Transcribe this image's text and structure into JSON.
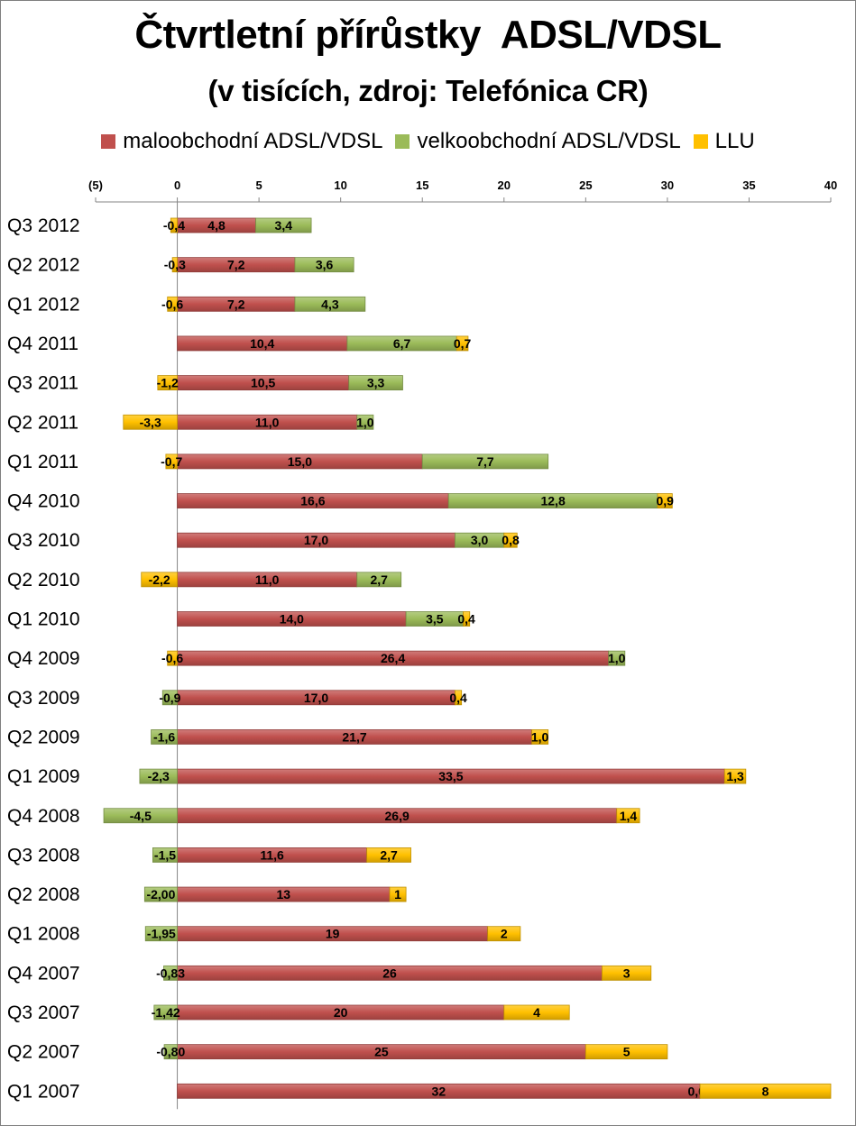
{
  "chart_data": {
    "type": "bar",
    "orientation": "horizontal",
    "stacked": true,
    "title": "Čtvrtletní přírůstky  ADSL/VDSL",
    "subtitle": "(v tisících, zdroj: Telefónica CR)",
    "xlim": [
      -5,
      40
    ],
    "xticks": [
      -5,
      0,
      5,
      10,
      15,
      20,
      25,
      30,
      35,
      40
    ],
    "xtick_labels": [
      "(5)",
      "0",
      "5",
      "10",
      "15",
      "20",
      "25",
      "30",
      "35",
      "40"
    ],
    "axis_position": "top",
    "grid": false,
    "legend_position": "top",
    "categories": [
      "Q3 2012",
      "Q2 2012",
      "Q1 2012",
      "Q4 2011",
      "Q3 2011",
      "Q2 2011",
      "Q1 2011",
      "Q4 2010",
      "Q3 2010",
      "Q2 2010",
      "Q1 2010",
      "Q4 2009",
      "Q3 2009",
      "Q2 2009",
      "Q1 2009",
      "Q4 2008",
      "Q3 2008",
      "Q2 2008",
      "Q1 2008",
      "Q4 2007",
      "Q3 2007",
      "Q2 2007",
      "Q1 2007"
    ],
    "series": [
      {
        "name": "maloobchodní ADSL/VDSL",
        "color": "#c0504d",
        "values": [
          4.8,
          7.2,
          7.2,
          10.4,
          10.5,
          11.0,
          15.0,
          16.6,
          17.0,
          11.0,
          14.0,
          26.4,
          17.0,
          21.7,
          33.5,
          26.9,
          11.6,
          13,
          19,
          26,
          20,
          25,
          32
        ],
        "labels": [
          "4,8",
          "7,2",
          "7,2",
          "10,4",
          "10,5",
          "11,0",
          "15,0",
          "16,6",
          "17,0",
          "11,0",
          "14,0",
          "26,4",
          "17,0",
          "21,7",
          "33,5",
          "26,9",
          "11,6",
          "13",
          "19",
          "26",
          "20",
          "25",
          "32"
        ]
      },
      {
        "name": "velkoobchodní ADSL/VDSL",
        "color": "#9bbb59",
        "values": [
          3.4,
          3.6,
          4.3,
          6.7,
          3.3,
          1.0,
          7.7,
          12.8,
          3.0,
          2.7,
          3.5,
          1.0,
          -0.9,
          -1.6,
          -2.3,
          -4.5,
          -1.5,
          -2.0,
          -1.95,
          -0.83,
          -1.42,
          -0.8,
          0.0
        ],
        "labels": [
          "3,4",
          "3,6",
          "4,3",
          "6,7",
          "3,3",
          "1,0",
          "7,7",
          "12,8",
          "3,0",
          "2,7",
          "3,5",
          "1,0",
          "-0,9",
          "-1,6",
          "-2,3",
          "-4,5",
          "-1,5",
          "-2,00",
          "-1,95",
          "-0,83",
          "-1,42",
          "-0,80",
          "0,00"
        ]
      },
      {
        "name": "LLU",
        "color": "#ffc000",
        "values": [
          -0.4,
          -0.3,
          -0.6,
          0.7,
          -1.2,
          -3.3,
          -0.7,
          0.9,
          0.8,
          -2.2,
          0.4,
          -0.6,
          0.4,
          1.0,
          1.3,
          1.4,
          2.7,
          1,
          2,
          3,
          4,
          5,
          8
        ],
        "labels": [
          "-0,4",
          "-0,3",
          "-0,6",
          "0,7",
          "-1,2",
          "-3,3",
          "-0,7",
          "0,9",
          "0,8",
          "-2,2",
          "0,4",
          "-0,6",
          "0,4",
          "1,0",
          "1,3",
          "1,4",
          "2,7",
          "1",
          "2",
          "3",
          "4",
          "5",
          "8"
        ]
      }
    ]
  }
}
